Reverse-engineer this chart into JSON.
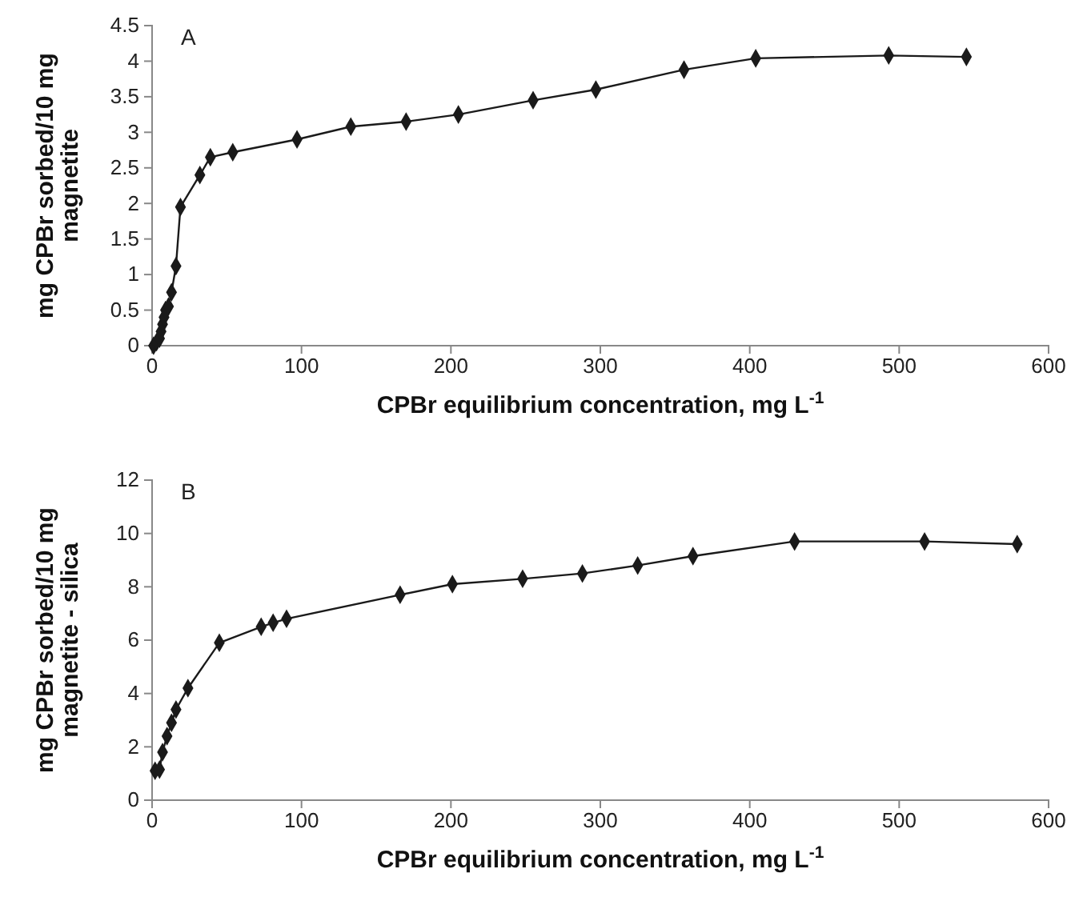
{
  "chart_data": [
    {
      "type": "line",
      "xlabel": "CPBr equilibrium concentration, mg L$^{-1}$",
      "ylabel": "mg CPBr sorbed/10 mg\nmagnetite",
      "annotations": [
        "A"
      ],
      "marker": "diamond",
      "grid": false,
      "xlim": [
        0,
        600
      ],
      "xticks": [
        0,
        100,
        200,
        300,
        400,
        500,
        600
      ],
      "ylim": [
        0,
        4.5
      ],
      "yticks": [
        0,
        0.5,
        1,
        1.5,
        2,
        2.5,
        3,
        3.5,
        4,
        4.5
      ],
      "series": [
        {
          "color": "#1a1a1a",
          "x": [
            1,
            3,
            5,
            6,
            7,
            8,
            9,
            11,
            13,
            16,
            19,
            32,
            39,
            54,
            97,
            133,
            170,
            205,
            255,
            297,
            356,
            404,
            493,
            545
          ],
          "values": [
            0,
            0.05,
            0.1,
            0.2,
            0.3,
            0.4,
            0.5,
            0.55,
            0.75,
            1.12,
            1.95,
            2.4,
            2.65,
            2.72,
            2.9,
            3.08,
            3.15,
            3.25,
            3.45,
            3.6,
            3.88,
            4.04,
            4.08,
            4.06
          ]
        }
      ]
    },
    {
      "type": "line",
      "xlabel": "CPBr equilibrium concentration, mg L$^{-1}$",
      "ylabel": "mg CPBr sorbed/10 mg\nmagnetite - silica",
      "annotations": [
        "B"
      ],
      "marker": "diamond",
      "grid": false,
      "xlim": [
        0,
        600
      ],
      "xticks": [
        0,
        100,
        200,
        300,
        400,
        500,
        600
      ],
      "ylim": [
        0,
        12
      ],
      "yticks": [
        0,
        2,
        4,
        6,
        8,
        10,
        12
      ],
      "series": [
        {
          "color": "#1a1a1a",
          "x": [
            2,
            5,
            7,
            10,
            13,
            16,
            24,
            45,
            73,
            81,
            90,
            166,
            201,
            248,
            288,
            325,
            362,
            430,
            517,
            579
          ],
          "values": [
            1.1,
            1.15,
            1.8,
            2.4,
            2.9,
            3.4,
            4.2,
            5.9,
            6.5,
            6.65,
            6.8,
            7.7,
            8.1,
            8.3,
            8.5,
            8.8,
            9.15,
            9.7,
            9.7,
            9.6
          ]
        }
      ]
    }
  ]
}
